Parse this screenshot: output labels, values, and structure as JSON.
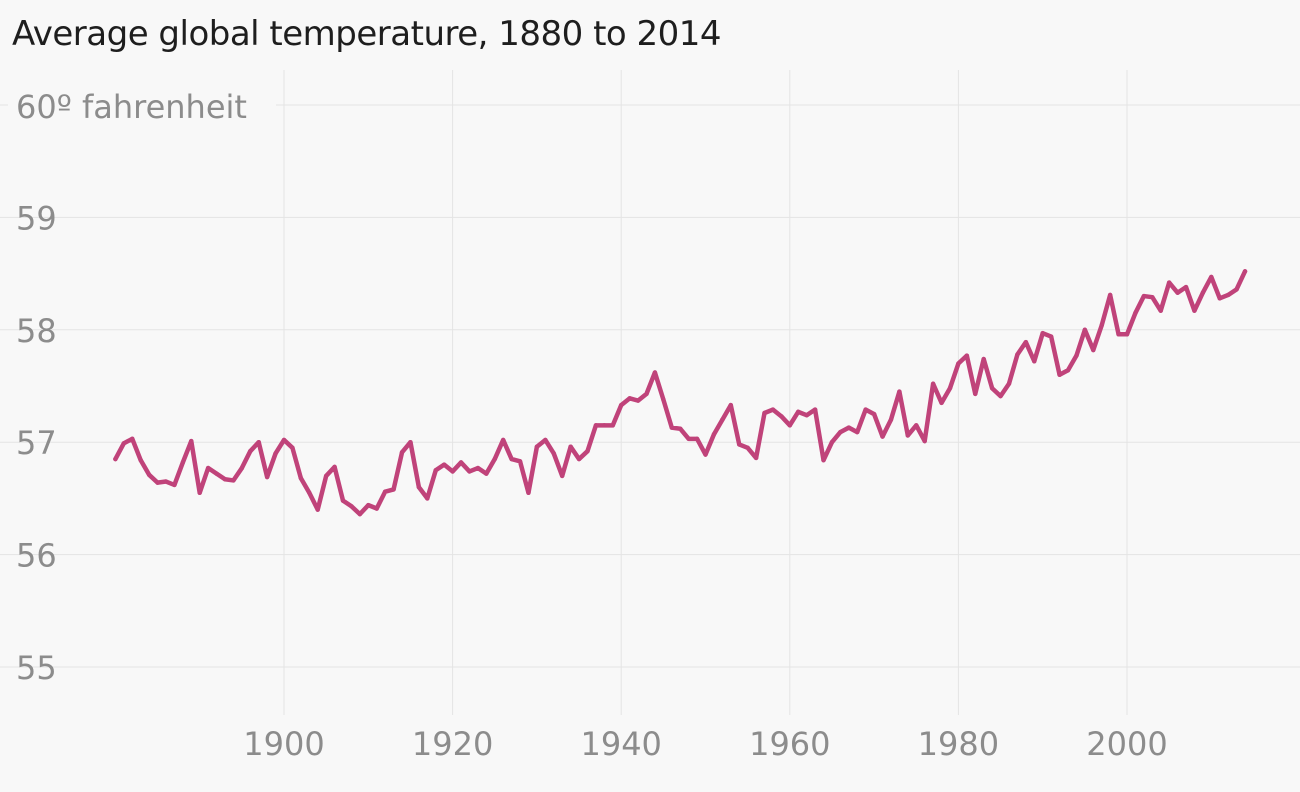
{
  "chart_data": {
    "type": "line",
    "title": "Average global temperature, 1880 to 2014",
    "top_label": "60º fahrenheit",
    "xlabel": "",
    "ylabel": "",
    "xlim": [
      1876,
      2018
    ],
    "ylim": [
      55,
      60
    ],
    "x_ticks": [
      1900,
      1920,
      1940,
      1960,
      1980,
      2000
    ],
    "y_ticks": [
      55,
      56,
      57,
      58,
      59
    ],
    "grid": true,
    "series": [
      {
        "name": "Average global temperature",
        "color": "#c0437a",
        "x": [
          1880,
          1881,
          1882,
          1883,
          1884,
          1885,
          1886,
          1887,
          1888,
          1889,
          1890,
          1891,
          1892,
          1893,
          1894,
          1895,
          1896,
          1897,
          1898,
          1899,
          1900,
          1901,
          1902,
          1903,
          1904,
          1905,
          1906,
          1907,
          1908,
          1909,
          1910,
          1911,
          1912,
          1913,
          1914,
          1915,
          1916,
          1917,
          1918,
          1919,
          1920,
          1921,
          1922,
          1923,
          1924,
          1925,
          1926,
          1927,
          1928,
          1929,
          1930,
          1931,
          1932,
          1933,
          1934,
          1935,
          1936,
          1937,
          1938,
          1939,
          1940,
          1941,
          1942,
          1943,
          1944,
          1945,
          1946,
          1947,
          1948,
          1949,
          1950,
          1951,
          1952,
          1953,
          1954,
          1955,
          1956,
          1957,
          1958,
          1959,
          1960,
          1961,
          1962,
          1963,
          1964,
          1965,
          1966,
          1967,
          1968,
          1969,
          1970,
          1971,
          1972,
          1973,
          1974,
          1975,
          1976,
          1977,
          1978,
          1979,
          1980,
          1981,
          1982,
          1983,
          1984,
          1985,
          1986,
          1987,
          1988,
          1989,
          1990,
          1991,
          1992,
          1993,
          1994,
          1995,
          1996,
          1997,
          1998,
          1999,
          2000,
          2001,
          2002,
          2003,
          2004,
          2005,
          2006,
          2007,
          2008,
          2009,
          2010,
          2011,
          2012,
          2013,
          2014
        ],
        "values": [
          56.85,
          56.99,
          57.03,
          56.84,
          56.71,
          56.64,
          56.65,
          56.62,
          56.82,
          57.01,
          56.55,
          56.77,
          56.72,
          56.67,
          56.66,
          56.77,
          56.92,
          57.0,
          56.69,
          56.9,
          57.02,
          56.95,
          56.68,
          56.55,
          56.4,
          56.7,
          56.78,
          56.48,
          56.43,
          56.36,
          56.44,
          56.41,
          56.56,
          56.58,
          56.91,
          57.0,
          56.6,
          56.5,
          56.75,
          56.8,
          56.74,
          56.82,
          56.74,
          56.77,
          56.72,
          56.85,
          57.02,
          56.85,
          56.83,
          56.55,
          56.96,
          57.02,
          56.9,
          56.7,
          56.96,
          56.85,
          56.92,
          57.15,
          57.15,
          57.15,
          57.33,
          57.39,
          57.37,
          57.43,
          57.62,
          57.38,
          57.13,
          57.12,
          57.03,
          57.03,
          56.89,
          57.07,
          57.2,
          57.33,
          56.98,
          56.95,
          56.86,
          57.26,
          57.29,
          57.23,
          57.15,
          57.27,
          57.24,
          57.29,
          56.84,
          57.0,
          57.09,
          57.13,
          57.09,
          57.29,
          57.25,
          57.05,
          57.2,
          57.45,
          57.06,
          57.15,
          57.01,
          57.52,
          57.35,
          57.48,
          57.7,
          57.77,
          57.43,
          57.74,
          57.48,
          57.41,
          57.52,
          57.78,
          57.89,
          57.72,
          57.97,
          57.94,
          57.6,
          57.64,
          57.77,
          58.0,
          57.82,
          58.04,
          58.31,
          57.96,
          57.96,
          58.15,
          58.3,
          58.29,
          58.17,
          58.42,
          58.33,
          58.38,
          58.17,
          58.33,
          58.47,
          58.28,
          58.31,
          58.36,
          58.52
        ]
      }
    ]
  }
}
